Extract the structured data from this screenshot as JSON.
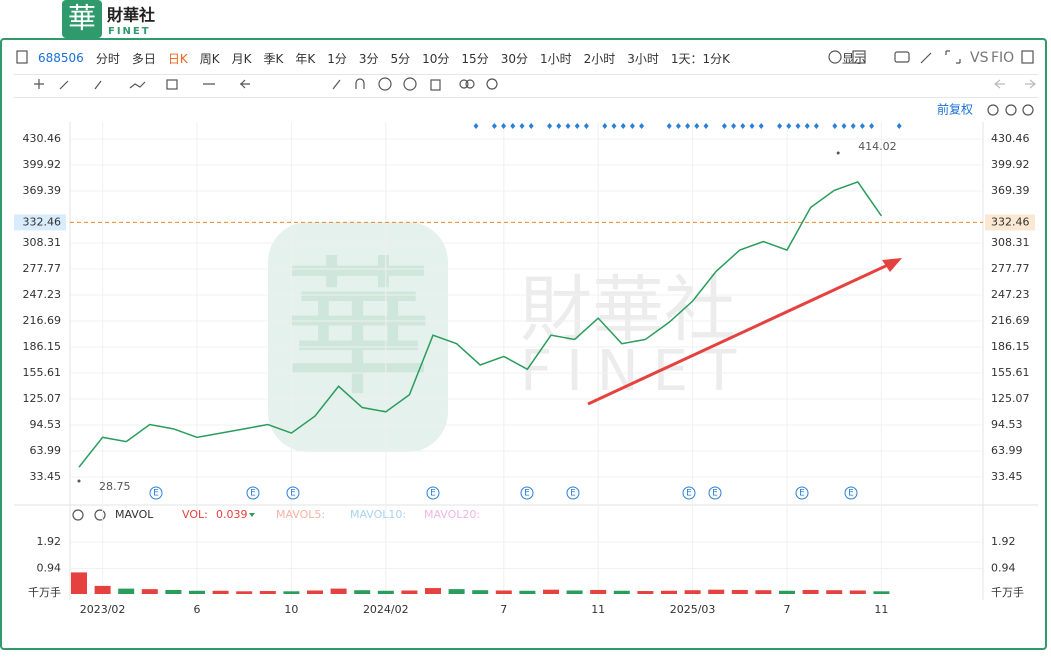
{
  "header": {
    "logo": "華",
    "brand": "財華社",
    "brand_en": "FINET"
  },
  "toolbar": {
    "code": "688506",
    "periods": [
      "分时",
      "多日",
      "日K",
      "周K",
      "月K",
      "季K",
      "年K",
      "1分",
      "3分",
      "5分",
      "10分",
      "15分",
      "30分",
      "1小时",
      "2小时",
      "3小时"
    ],
    "active_index": 2,
    "range": "1天：1分K",
    "display": "显示",
    "vs": "VS",
    "fio": "FIO",
    "adjust": "前复权"
  },
  "chart_data": [
    {
      "type": "line",
      "color": "#2a9d5c",
      "categories": [
        null,
        "2023/02",
        null,
        null,
        null,
        "6",
        null,
        null,
        null,
        "10",
        null,
        null,
        null,
        "2024/02",
        null,
        null,
        null,
        null,
        "7",
        null,
        null,
        null,
        "11",
        null,
        null,
        null,
        "2025/03",
        null,
        null,
        null,
        "7",
        null,
        null,
        null,
        "11"
      ],
      "values": [
        45,
        80,
        75,
        95,
        90,
        80,
        85,
        90,
        95,
        85,
        105,
        140,
        115,
        110,
        130,
        200,
        190,
        165,
        175,
        160,
        200,
        195,
        220,
        190,
        195,
        215,
        240,
        275,
        300,
        310,
        300,
        350,
        370,
        380,
        340
      ],
      "ylim": [
        6.4,
        450.4
      ],
      "yticks": [
        33.45,
        63.99,
        94.53,
        125.07,
        155.61,
        186.15,
        216.69,
        247.23,
        277.77,
        308.31,
        369.39,
        399.92,
        430.46
      ],
      "grid": true,
      "current_price": 332.46,
      "annotations": [
        {
          "text": "414.02",
          "value": 414.02
        },
        {
          "text": "28.75",
          "value": 28.75
        }
      ],
      "event_marker": "E",
      "watermark": [
        "財華社",
        "FINET"
      ]
    },
    {
      "type": "bar",
      "up_color": "#e5413f",
      "down_color": "#2a9d5c",
      "values": [
        0.8,
        0.3,
        0.2,
        0.18,
        0.15,
        0.12,
        0.12,
        0.1,
        0.11,
        0.1,
        0.13,
        0.2,
        0.14,
        0.12,
        0.13,
        0.22,
        0.18,
        0.14,
        0.13,
        0.12,
        0.16,
        0.13,
        0.15,
        0.12,
        0.11,
        0.12,
        0.14,
        0.16,
        0.15,
        0.14,
        0.12,
        0.15,
        0.14,
        0.13,
        0.1
      ],
      "ylim": [
        0,
        2.37
      ],
      "yticks": [
        0.94,
        1.92
      ],
      "unit": "千万手",
      "legend": {
        "name": "MAVOL",
        "vol_label": "VOL:",
        "vol_value": 0.039,
        "vol_color": "#e5413f",
        "ma": [
          {
            "name": "MAVOL5:",
            "color": "#f3b5a5"
          },
          {
            "name": "MAVOL10:",
            "color": "#a9d3ef"
          },
          {
            "name": "MAVOL20:",
            "color": "#efb6e4"
          }
        ]
      }
    }
  ]
}
